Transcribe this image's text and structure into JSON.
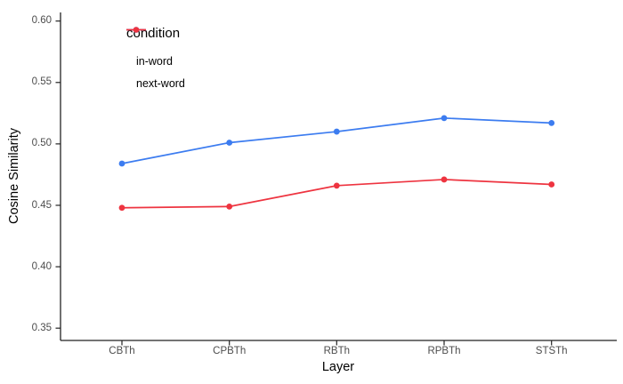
{
  "chart_data": {
    "type": "line",
    "title": "",
    "xlabel": "Layer",
    "ylabel": "Cosine Similarity",
    "categories": [
      "CBTh",
      "CPBTh",
      "RBTh",
      "RPBTh",
      "STSTh"
    ],
    "series": [
      {
        "name": "in-word",
        "color": "#3C7CF0",
        "values": [
          0.484,
          0.501,
          0.51,
          0.521,
          0.517
        ]
      },
      {
        "name": "next-word",
        "color": "#EE3440",
        "values": [
          0.448,
          0.449,
          0.466,
          0.471,
          0.467
        ]
      }
    ],
    "legend_title": "condition",
    "legend_position": "inside-top-left",
    "ylim": [
      0.34,
      0.607
    ],
    "yticks": [
      0.35,
      0.4,
      0.45,
      0.5,
      0.55,
      0.6
    ],
    "ytick_labels": [
      "0.35",
      "0.40",
      "0.45",
      "0.50",
      "0.55",
      "0.60"
    ],
    "grid": "off",
    "axis_color": "#222222",
    "tick_text_color": "#4d4d4d"
  }
}
